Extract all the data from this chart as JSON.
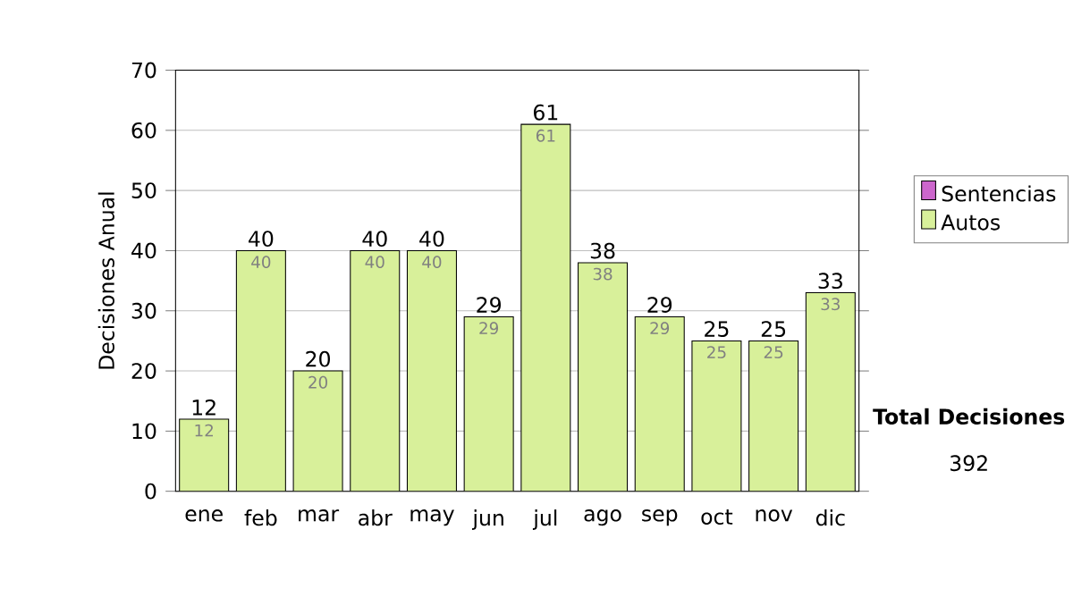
{
  "chart_data": {
    "type": "bar",
    "stacked": true,
    "ylabel": "Decisiones Anual",
    "categories": [
      "ene",
      "feb",
      "mar",
      "abr",
      "may",
      "jun",
      "jul",
      "ago",
      "sep",
      "oct",
      "nov",
      "dic"
    ],
    "series": [
      {
        "name": "Sentencias",
        "color": "#cc66cc",
        "values": [
          0,
          0,
          0,
          0,
          0,
          0,
          0,
          0,
          0,
          0,
          0,
          0
        ]
      },
      {
        "name": "Autos",
        "color": "#d8f09a",
        "values": [
          12,
          40,
          20,
          40,
          40,
          29,
          61,
          38,
          29,
          25,
          25,
          33
        ],
        "value_labels": [
          "12",
          "40",
          "20",
          "40",
          "40",
          "29",
          "61",
          "38",
          "29",
          "25",
          "25",
          "33"
        ]
      }
    ],
    "totals": [
      "12",
      "40",
      "20",
      "40",
      "40",
      "29",
      "61",
      "38",
      "29",
      "25",
      "25",
      "33"
    ],
    "ylim": [
      0,
      70
    ],
    "yticks": [
      0,
      10,
      20,
      30,
      40,
      50,
      60,
      70
    ],
    "grid": "y",
    "legend": "right",
    "annotations": [
      "Total Decisiones",
      "392"
    ]
  }
}
